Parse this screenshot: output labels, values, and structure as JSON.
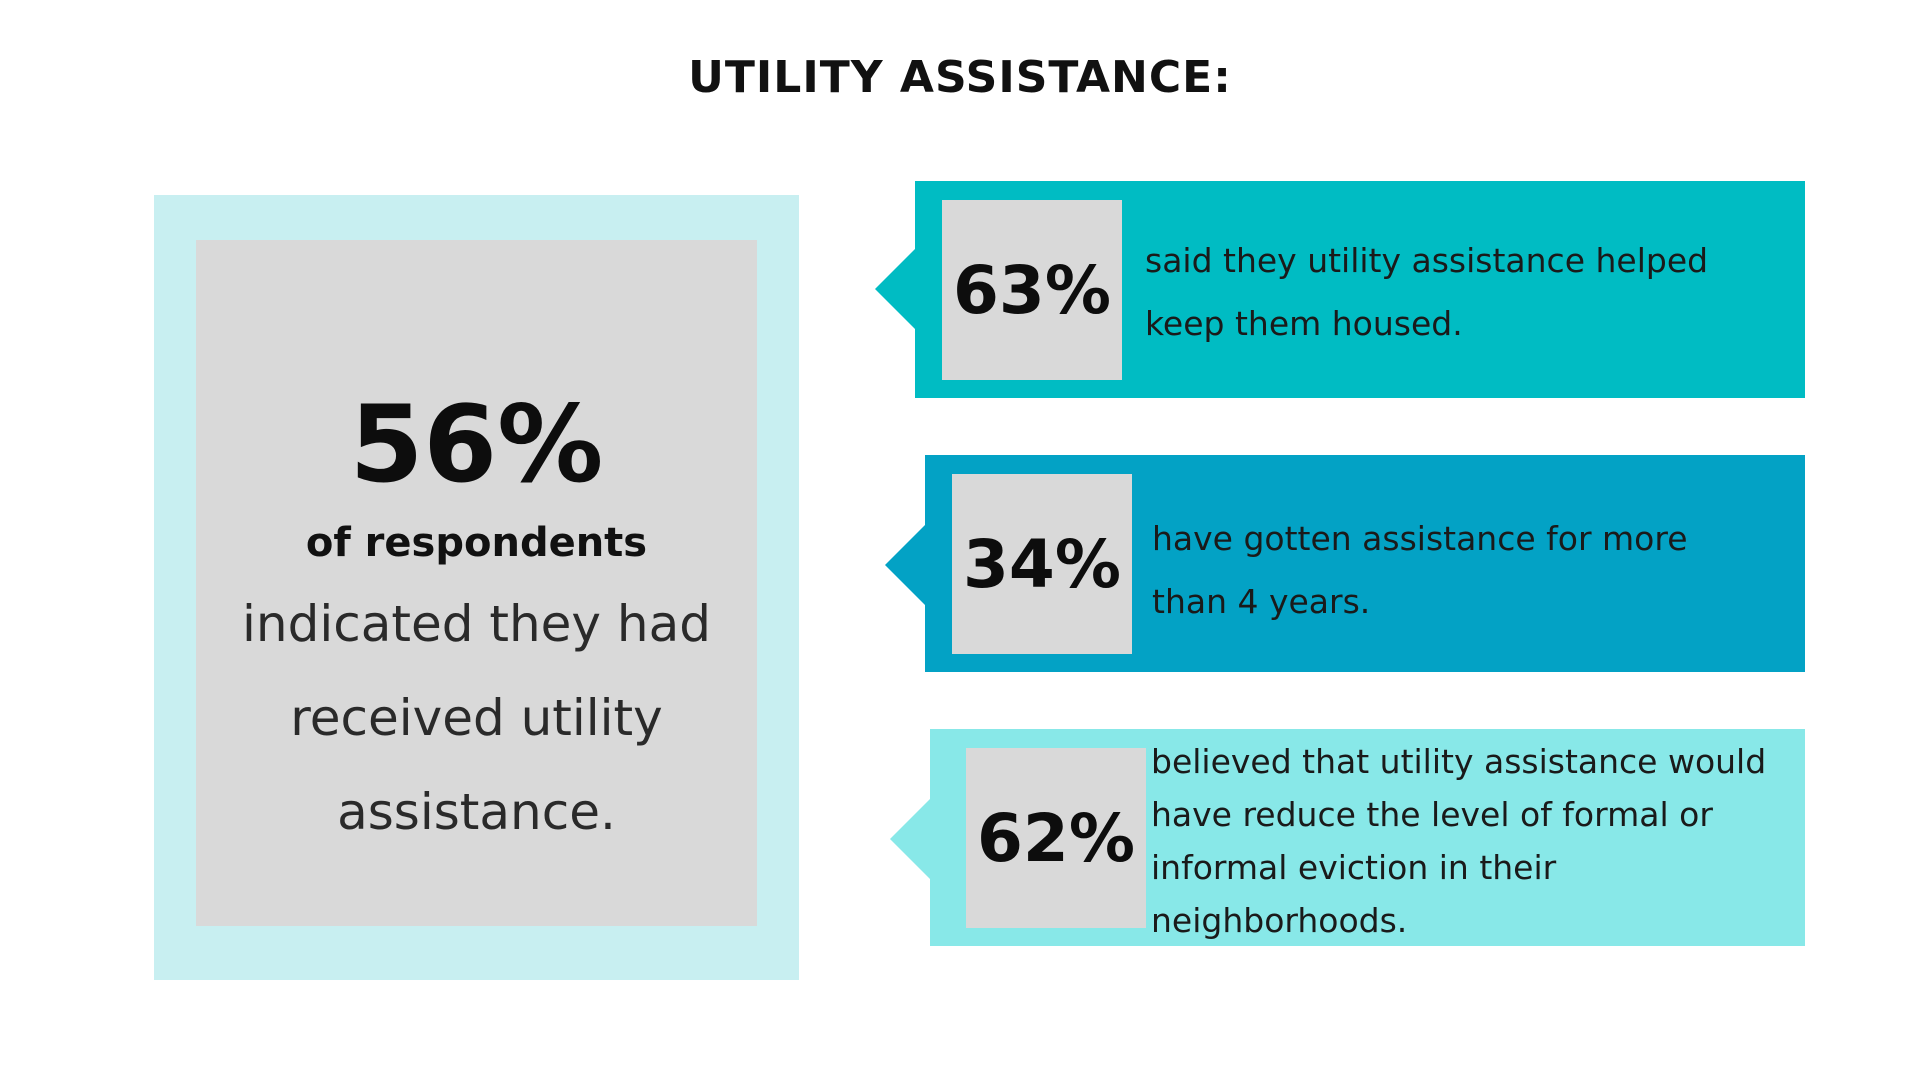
{
  "title": "UTILITY ASSISTANCE:",
  "summary": {
    "percent": "56%",
    "subtitle": "of respondents",
    "description": "indicated they had received utility assistance."
  },
  "stats": [
    {
      "percent": "63%",
      "text": "said they utility assistance helped keep them housed.",
      "color": "#00bcc3"
    },
    {
      "percent": "34%",
      "text": "have gotten assistance for more than 4 years.",
      "color": "#03a2c5"
    },
    {
      "percent": "62%",
      "text": "believed that utility assistance would have reduce the level of formal or informal eviction in their neighborhoods.",
      "color": "#88e8e8"
    }
  ],
  "colors": {
    "summary_outer": "#c8eff1",
    "box_gray": "#d9d9d9"
  }
}
